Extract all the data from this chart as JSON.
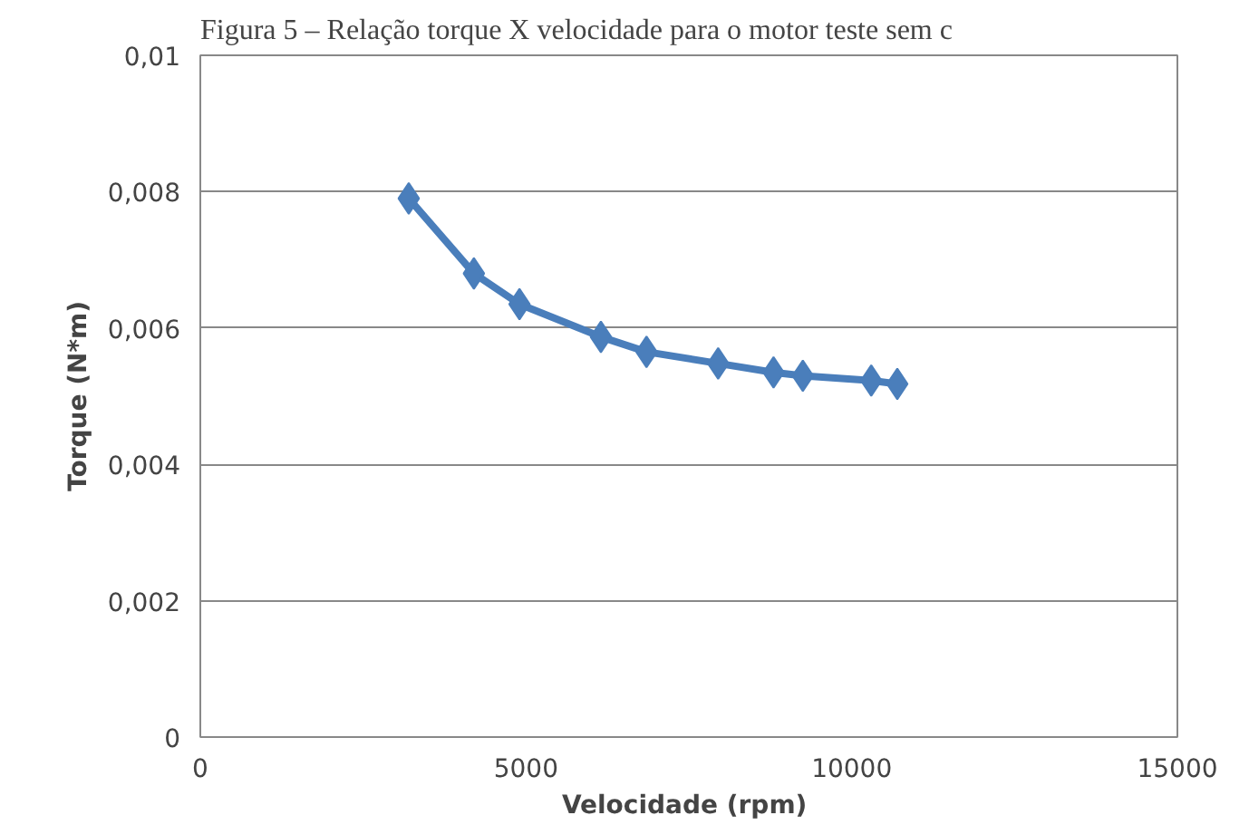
{
  "chart_data": {
    "type": "line",
    "title": "Figura 5 – Relação torque X velocidade para o motor teste sem c",
    "xlabel": "Velocidade  (rpm)",
    "ylabel": "Torque (N*m)",
    "x": [
      3200,
      4200,
      4900,
      6150,
      6850,
      7950,
      8800,
      9250,
      10300,
      10700
    ],
    "series": [
      {
        "color": "#4a7ebb",
        "values": [
          0.0079,
          0.0068,
          0.00635,
          0.00587,
          0.00565,
          0.00548,
          0.00535,
          0.0053,
          0.00523,
          0.00518
        ]
      }
    ],
    "xlim": [
      0,
      15000
    ],
    "xticks": [
      0,
      5000,
      10000,
      15000
    ],
    "ylim": [
      0,
      0.01
    ],
    "yticks": [
      {
        "value": 0,
        "label": "0"
      },
      {
        "value": 0.002,
        "label": "0,002"
      },
      {
        "value": 0.004,
        "label": "0,004"
      },
      {
        "value": 0.006,
        "label": "0,006"
      },
      {
        "value": 0.008,
        "label": "0,008"
      },
      {
        "value": 0.01,
        "label": "0,01"
      }
    ],
    "grid": "y",
    "marker": "diamond",
    "line_style": "solid"
  }
}
